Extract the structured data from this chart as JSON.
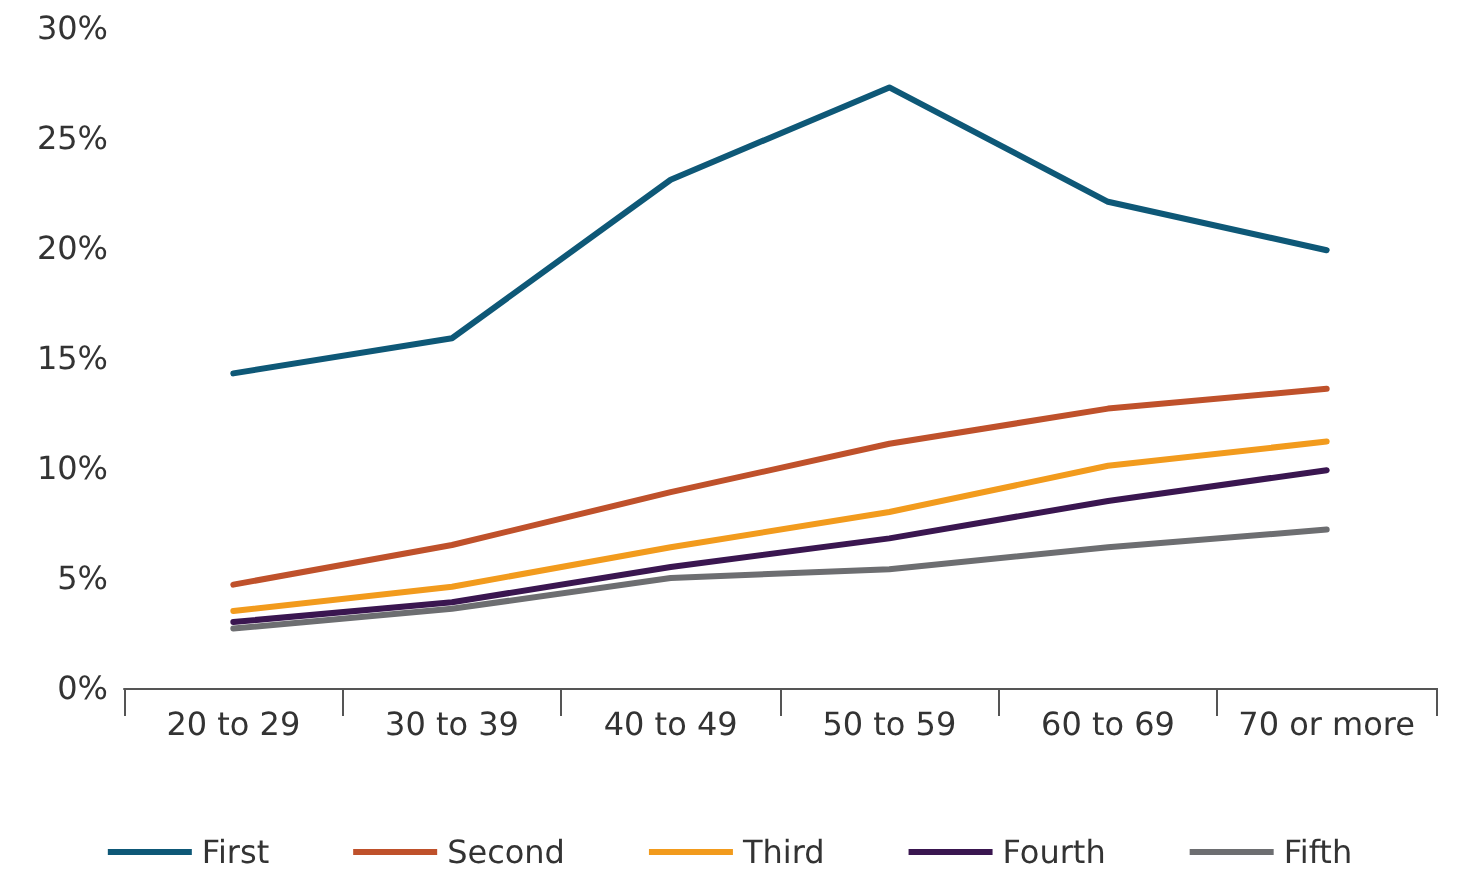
{
  "chart_data": {
    "type": "line",
    "categories": [
      "20 to 29",
      "30 to 39",
      "40 to 49",
      "50 to 59",
      "60 to 69",
      "70 or more"
    ],
    "series": [
      {
        "name": "First",
        "color": "#0e5877",
        "values": [
          14.3,
          15.9,
          23.1,
          27.3,
          22.1,
          19.9
        ]
      },
      {
        "name": "Second",
        "color": "#bf512b",
        "values": [
          4.7,
          6.5,
          8.9,
          11.1,
          12.7,
          13.6
        ]
      },
      {
        "name": "Third",
        "color": "#f29b1d",
        "values": [
          3.5,
          4.6,
          6.4,
          8.0,
          10.1,
          11.2
        ]
      },
      {
        "name": "Fourth",
        "color": "#3a1650",
        "values": [
          3.0,
          3.9,
          5.5,
          6.8,
          8.5,
          9.9
        ]
      },
      {
        "name": "Fifth",
        "color": "#6d6e71",
        "values": [
          2.7,
          3.6,
          5.0,
          5.4,
          6.4,
          7.2
        ]
      }
    ],
    "ylim": [
      0,
      30
    ],
    "yticks": [
      {
        "value": 0,
        "label": "0%"
      },
      {
        "value": 5,
        "label": "5%"
      },
      {
        "value": 10,
        "label": "10%"
      },
      {
        "value": 15,
        "label": "15%"
      },
      {
        "value": 20,
        "label": "20%"
      },
      {
        "value": 25,
        "label": "25%"
      },
      {
        "value": 30,
        "label": "30%"
      }
    ],
    "grid": false,
    "legend": "bottom",
    "marker": "none",
    "line_style": "solid"
  }
}
